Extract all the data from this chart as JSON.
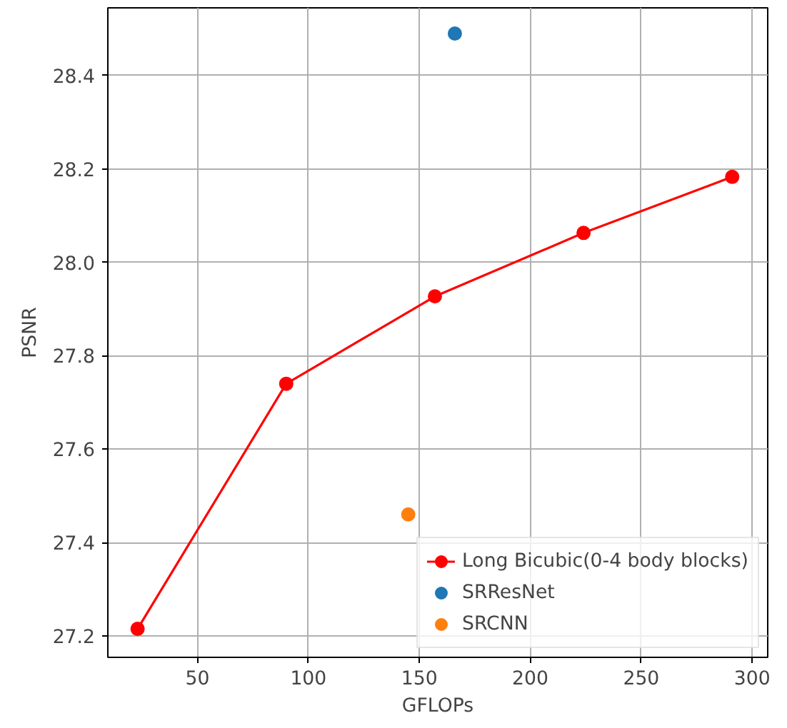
{
  "chart_data": {
    "type": "line",
    "xlabel": "GFLOPs",
    "ylabel": "PSNR",
    "xlim": [
      9.6,
      307
    ],
    "ylim": [
      27.154,
      28.545
    ],
    "xticks": [
      50,
      100,
      150,
      200,
      250,
      300
    ],
    "yticks": [
      {
        "value": 27.2,
        "label": "27.2"
      },
      {
        "value": 27.4,
        "label": "27.4"
      },
      {
        "value": 27.6,
        "label": "27.6"
      },
      {
        "value": 27.8,
        "label": "27.8"
      },
      {
        "value": 28.0,
        "label": "28.0"
      },
      {
        "value": 28.2,
        "label": "28.2"
      },
      {
        "value": 28.4,
        "label": "28.4"
      }
    ],
    "grid": true,
    "legend": "bottom right",
    "marker": "circle",
    "line_style": "solid",
    "series": [
      {
        "name": "Long Bicubic(0-4 body blocks)",
        "color": "#ff0000",
        "x": [
          23,
          90,
          157,
          224,
          291
        ],
        "values": [
          27.215,
          27.74,
          27.927,
          28.063,
          28.183
        ]
      },
      {
        "name": "SRResNet",
        "type": "scatter",
        "color": "#1f77b4",
        "x": [
          166
        ],
        "values": [
          28.49
        ]
      },
      {
        "name": "SRCNN",
        "type": "scatter",
        "color": "#ff7f0e",
        "x": [
          145
        ],
        "values": [
          27.46
        ]
      }
    ]
  }
}
